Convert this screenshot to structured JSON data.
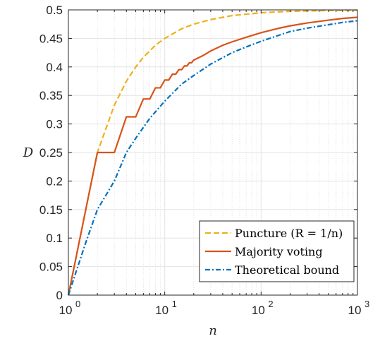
{
  "chart_data": {
    "type": "line",
    "xscale": "log",
    "xlim": [
      1,
      1000
    ],
    "ylim": [
      0,
      0.5
    ],
    "xlabel": "n",
    "ylabel": "D",
    "grid": true,
    "legend_position": "bottom-right",
    "yticks": [
      "0",
      "0.05",
      "0.1",
      "0.15",
      "0.2",
      "0.25",
      "0.3",
      "0.35",
      "0.4",
      "0.45",
      "0.5"
    ],
    "xticks": [
      {
        "base": "10",
        "exp": "0"
      },
      {
        "base": "10",
        "exp": "1"
      },
      {
        "base": "10",
        "exp": "2"
      },
      {
        "base": "10",
        "exp": "3"
      }
    ],
    "series": [
      {
        "name": "Puncture (R = 1/n)",
        "legend_label": "Puncture (R = 1/n)",
        "color": "#EDB120",
        "style": "dashed",
        "x": [
          1,
          2,
          3,
          4,
          5,
          6,
          8,
          10,
          15,
          20,
          30,
          50,
          100,
          200,
          500,
          1000
        ],
        "y": [
          0,
          0.25,
          0.333,
          0.375,
          0.4,
          0.417,
          0.438,
          0.45,
          0.467,
          0.475,
          0.483,
          0.49,
          0.495,
          0.4975,
          0.499,
          0.4995
        ]
      },
      {
        "name": "Majority voting",
        "legend_label": "Majority voting",
        "color": "#D95319",
        "style": "solid",
        "x": [
          1,
          2,
          3,
          4,
          5,
          6,
          7,
          8,
          9,
          10,
          11,
          12,
          13,
          14,
          15,
          16,
          17,
          18,
          19,
          20,
          25,
          30,
          40,
          50,
          70,
          100,
          150,
          200,
          300,
          500,
          700,
          1000
        ],
        "y": [
          0,
          0.25,
          0.25,
          0.3125,
          0.3125,
          0.3438,
          0.3438,
          0.3633,
          0.3633,
          0.377,
          0.377,
          0.3872,
          0.3872,
          0.3953,
          0.3953,
          0.4018,
          0.4018,
          0.4073,
          0.4073,
          0.412,
          0.42,
          0.428,
          0.438,
          0.444,
          0.452,
          0.46,
          0.4675,
          0.472,
          0.477,
          0.482,
          0.485,
          0.487
        ]
      },
      {
        "name": "Theoretical bound",
        "legend_label": "Theoretical bound",
        "color": "#0072BD",
        "style": "dashdot",
        "x": [
          1,
          1.5,
          2,
          3,
          4,
          5,
          7,
          10,
          15,
          20,
          30,
          50,
          70,
          100,
          150,
          200,
          300,
          500,
          700,
          1000
        ],
        "y": [
          0,
          0.09,
          0.15,
          0.2,
          0.25,
          0.275,
          0.31,
          0.34,
          0.37,
          0.385,
          0.405,
          0.425,
          0.435,
          0.445,
          0.455,
          0.462,
          0.468,
          0.474,
          0.478,
          0.481
        ]
      }
    ]
  }
}
